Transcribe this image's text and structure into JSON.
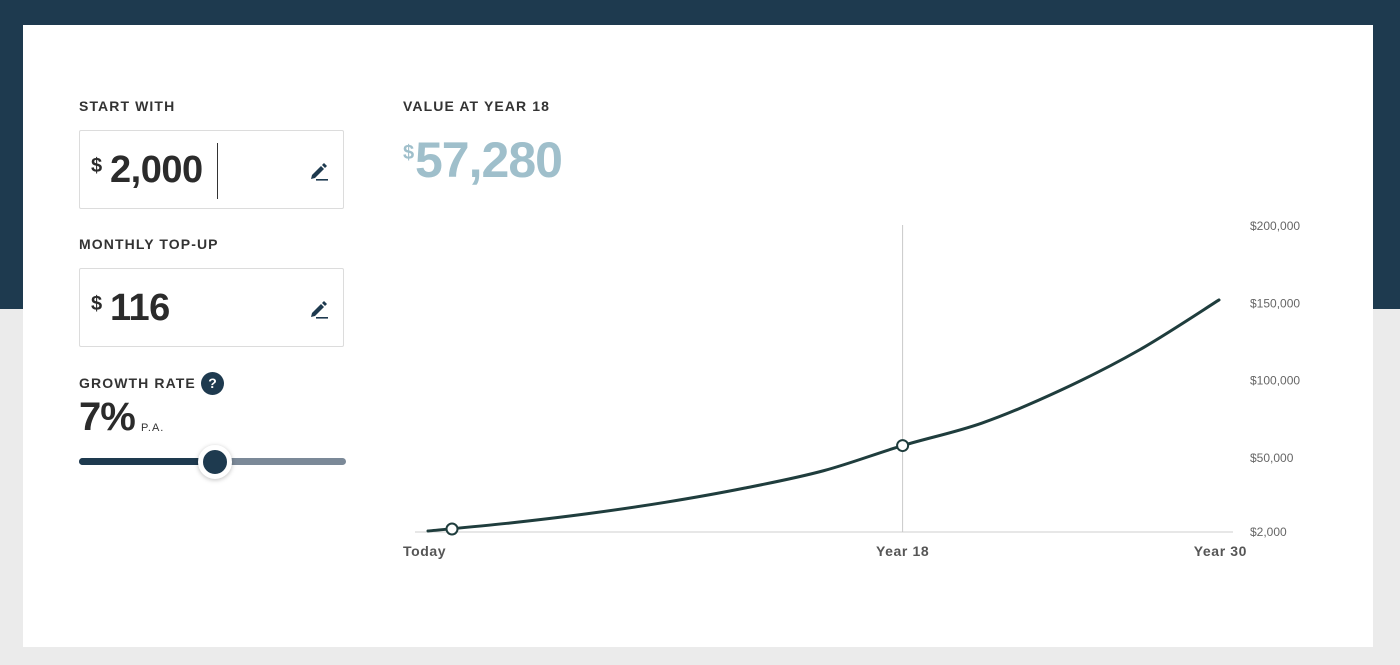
{
  "colors": {
    "band": "#1e3a4f",
    "accent": "#1e3a4f",
    "result": "#9fbfcb",
    "line": "#1f3d3d"
  },
  "start": {
    "label": "START WITH",
    "currency": "$",
    "value": "2,000",
    "edit_icon": "pencil-icon"
  },
  "topup": {
    "label": "MONTHLY TOP-UP",
    "currency": "$",
    "value": "116",
    "edit_icon": "pencil-icon"
  },
  "growth": {
    "label": "GROWTH RATE",
    "help": "?",
    "help_icon": "question-icon",
    "value": "7%",
    "unit": "P.A.",
    "slider_fraction": 0.49
  },
  "result": {
    "label": "VALUE AT YEAR 18",
    "currency": "$",
    "value": "57,280"
  },
  "chart_data": {
    "type": "line",
    "x": [
      0,
      3,
      6,
      9,
      12,
      15,
      18,
      21,
      24,
      27,
      30
    ],
    "series": [
      {
        "values": [
          2000,
          6972,
          13070,
          20550,
          29730,
          40990,
          57280,
          71780,
          93140,
          119360,
          151500
        ]
      }
    ],
    "highlight_points": [
      {
        "x": 0,
        "y": 2000
      },
      {
        "x": 18,
        "y": 57280
      }
    ],
    "marker_x": 18,
    "xlim": [
      0,
      30
    ],
    "ylim": [
      2000,
      200000
    ],
    "y_ticks": [
      2000,
      50000,
      100000,
      150000,
      200000
    ],
    "y_tick_labels": [
      "$2,000",
      "$50,000",
      "$100,000",
      "$150,000",
      "$200,000"
    ],
    "x_tick_labels": [
      "Today",
      "Year 18",
      "Year 30"
    ],
    "y_axis_side": "right",
    "grid": false
  }
}
